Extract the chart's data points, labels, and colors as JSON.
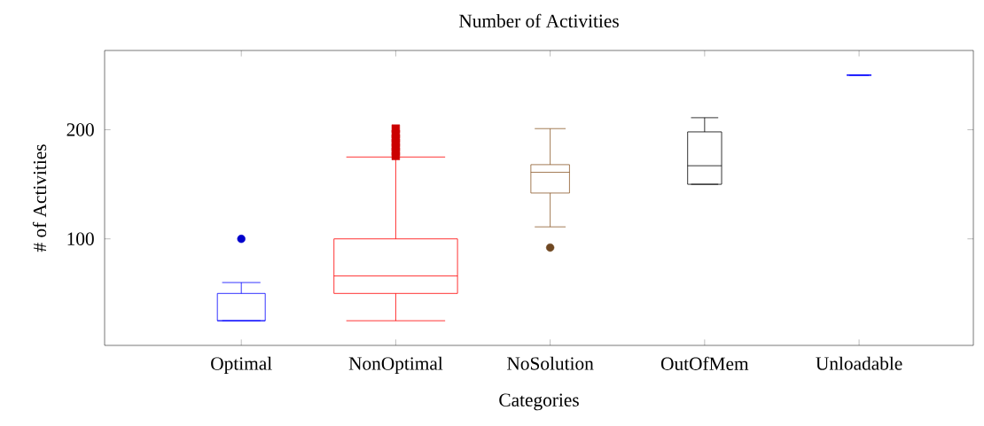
{
  "chart_data": {
    "type": "box",
    "title": "Number of Activities",
    "xlabel": "Categories",
    "ylabel": "# of Activities",
    "categories": [
      "Optimal",
      "NonOptimal",
      "NoSolution",
      "OutOfMem",
      "Unloadable"
    ],
    "ylim": [
      2.4,
      272.6
    ],
    "yticks": [
      100,
      200
    ],
    "grid": false,
    "series": [
      {
        "color": "#0000ff",
        "marker": "circle",
        "boxes": [
          {
            "low": 25,
            "q1": 25,
            "median": 25,
            "q3": 50,
            "high": 60,
            "outliers": [
              100
            ]
          },
          null,
          null,
          null,
          null
        ]
      },
      {
        "color": "#ff0000",
        "marker": "square",
        "boxes": [
          null,
          {
            "low": 25,
            "q1": 50,
            "median": 66,
            "q3": 100,
            "high": 175,
            "outliers": [
              176,
              180,
              184,
              188,
              192,
              196,
              201
            ]
          },
          null,
          null,
          null
        ]
      },
      {
        "color": "#8b5a2b",
        "marker": "circle",
        "boxes": [
          null,
          null,
          {
            "low": 111,
            "q1": 142,
            "median": 161,
            "q3": 168,
            "high": 201,
            "outliers": [
              92
            ]
          },
          null,
          null
        ]
      },
      {
        "color": "#000000",
        "marker": "none",
        "boxes": [
          null,
          null,
          null,
          {
            "low": 150,
            "q1": 150,
            "median": 167,
            "q3": 198,
            "high": 211
          },
          null
        ]
      },
      {
        "color": "#0000ff",
        "marker": "none",
        "boxes": [
          null,
          null,
          null,
          null,
          {
            "low": 250,
            "q1": 250,
            "median": 250,
            "q3": 250,
            "high": 250
          }
        ]
      }
    ]
  }
}
